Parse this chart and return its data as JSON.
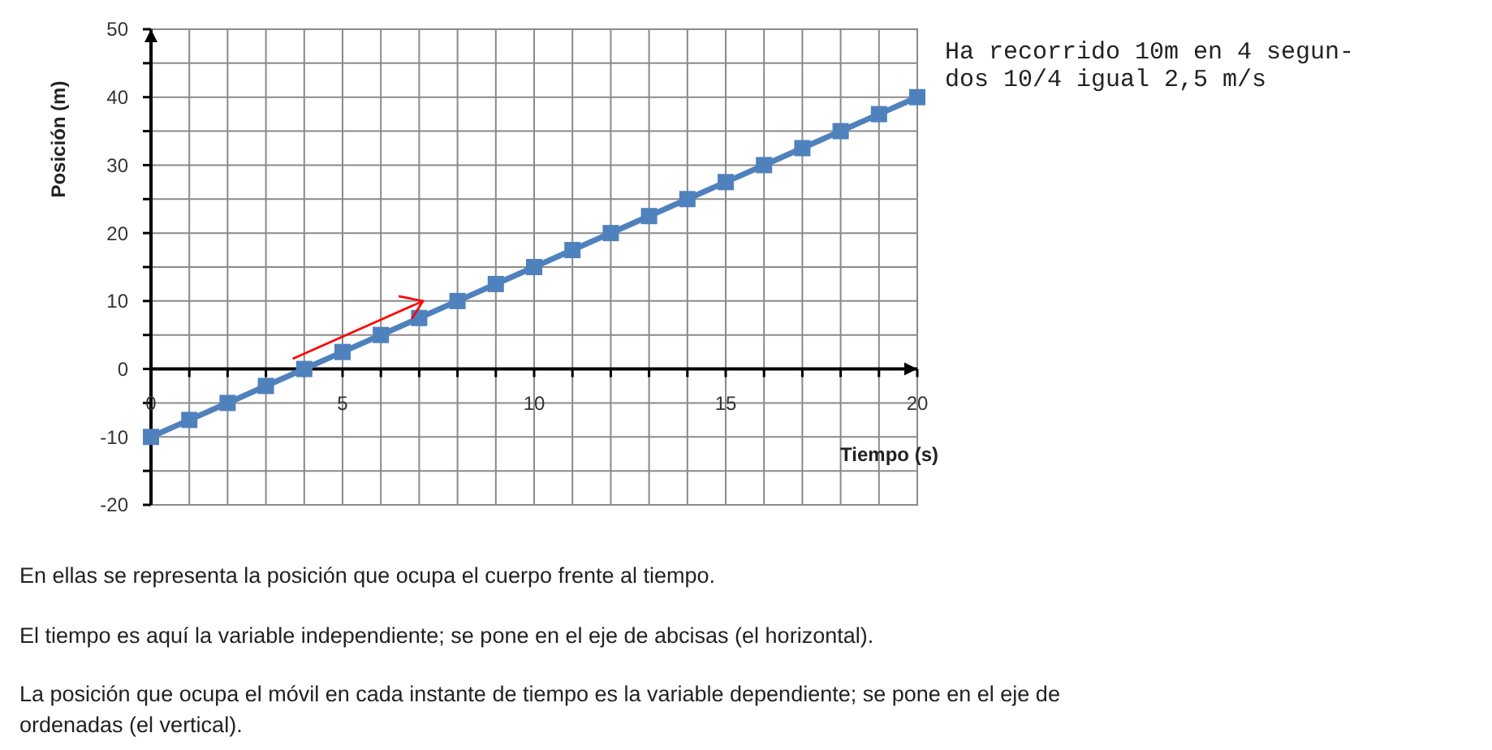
{
  "chart_data": {
    "type": "line",
    "xlabel": "Tiempo (s)",
    "ylabel": "Posición (m)",
    "x": [
      0,
      1,
      2,
      3,
      4,
      5,
      6,
      7,
      8,
      9,
      10,
      11,
      12,
      13,
      14,
      15,
      16,
      17,
      18,
      19,
      20
    ],
    "series": [
      {
        "color": "#4f81bd",
        "values": [
          -10,
          -7.5,
          -5,
          -2.5,
          0,
          2.5,
          5,
          7.5,
          10,
          12.5,
          15,
          17.5,
          20,
          22.5,
          25,
          27.5,
          30,
          32.5,
          35,
          37.5,
          40
        ]
      }
    ],
    "marker": "square",
    "grid": true,
    "xlim": [
      0,
      20
    ],
    "ylim": [
      -20,
      50
    ],
    "xticks": [
      0,
      {
        "value": 1,
        "label": null
      },
      {
        "value": 2,
        "label": null
      },
      {
        "value": 3,
        "label": null
      },
      {
        "value": 4,
        "label": null
      },
      5,
      {
        "value": 6,
        "label": null
      },
      {
        "value": 7,
        "label": null
      },
      {
        "value": 8,
        "label": null
      },
      {
        "value": 9,
        "label": null
      },
      10,
      {
        "value": 11,
        "label": null
      },
      {
        "value": 12,
        "label": null
      },
      {
        "value": 13,
        "label": null
      },
      {
        "value": 14,
        "label": null
      },
      15,
      {
        "value": 16,
        "label": null
      },
      {
        "value": 17,
        "label": null
      },
      {
        "value": 18,
        "label": null
      },
      {
        "value": 19,
        "label": null
      },
      20
    ],
    "yticks": [
      -20,
      {
        "value": -15,
        "label": null
      },
      -10,
      {
        "value": -5,
        "label": null
      },
      0,
      {
        "value": 5,
        "label": null
      },
      10,
      {
        "value": 15,
        "label": null
      },
      20,
      {
        "value": 25,
        "label": null
      },
      30,
      {
        "value": 35,
        "label": null
      },
      40,
      {
        "value": 45,
        "label": null
      },
      50
    ],
    "annotations": [
      "Ha recorrido 10m en 4 segun-\ndos 10/4 igual 2,5 m/s",
      "En ellas se representa la posición que ocupa el cuerpo frente al tiempo.",
      "El tiempo es aquí la variable independiente; se pone en el eje de abcisas (el horizontal).",
      "La posición que ocupa el móvil en cada instante de tiempo es la variable dependiente; se pone en el eje de\nordenadas (el vertical)."
    ]
  }
}
